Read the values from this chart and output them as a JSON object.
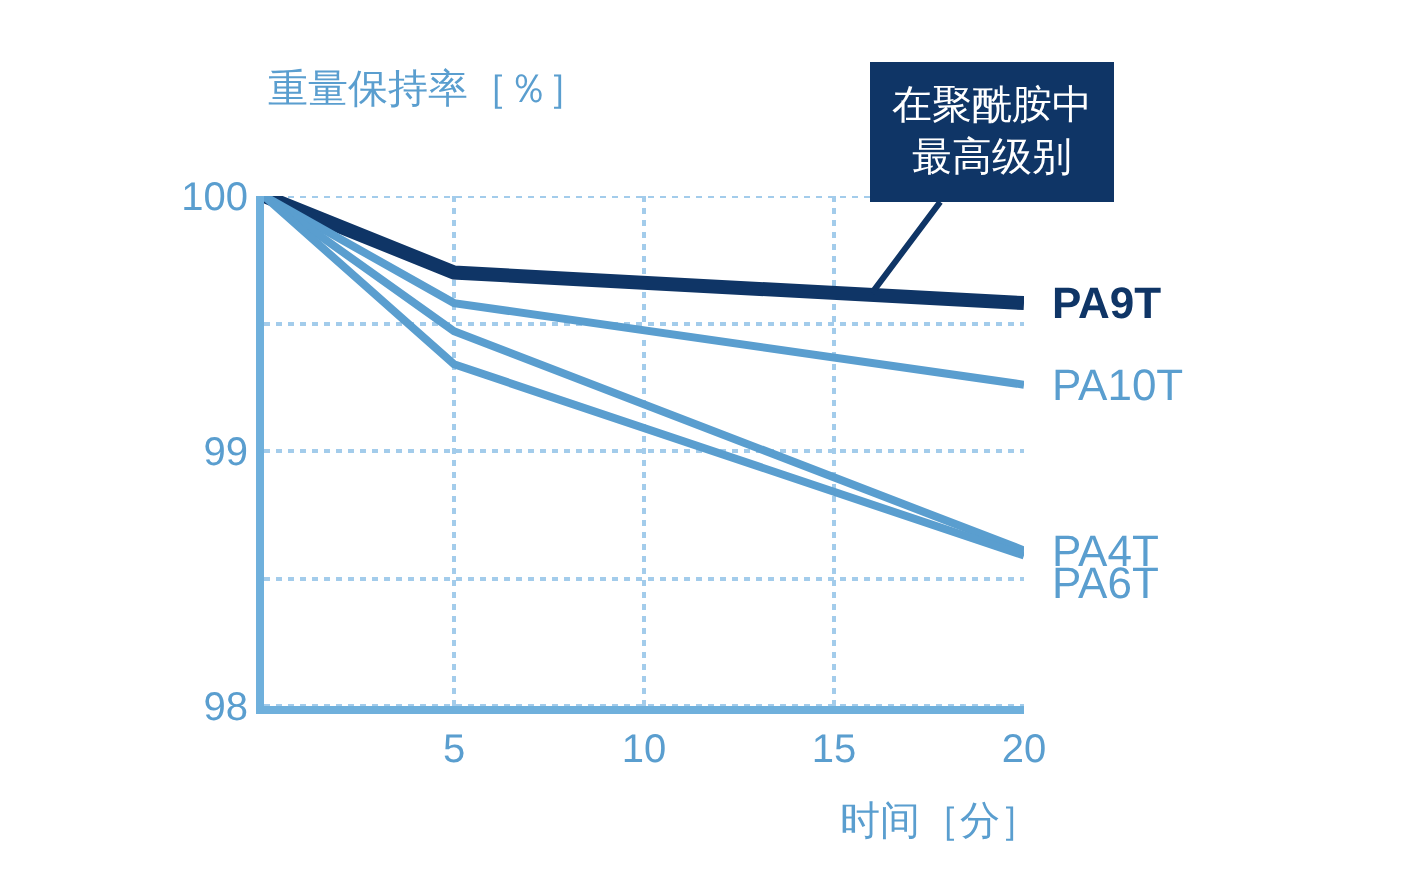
{
  "chart_data": {
    "type": "line",
    "ylabel": "重量保持率［％］",
    "xlabel": "时间［分］",
    "x": [
      0,
      5,
      20
    ],
    "series": [
      {
        "name": "PA9T",
        "color": "#0f3566",
        "values": [
          100,
          99.7,
          99.58
        ]
      },
      {
        "name": "PA10T",
        "color": "#5a9ecf",
        "values": [
          100,
          99.58,
          99.26
        ]
      },
      {
        "name": "PA4T",
        "color": "#5a9ecf",
        "values": [
          100,
          99.47,
          98.61
        ]
      },
      {
        "name": "PA6T",
        "color": "#5a9ecf",
        "values": [
          100,
          99.34,
          98.59
        ]
      }
    ],
    "xlim": [
      0,
      20
    ],
    "xticks": [
      5,
      10,
      15,
      20
    ],
    "ylim": [
      98,
      100
    ],
    "yticks": [
      98,
      {
        "value": 98.5,
        "label": null
      },
      99,
      {
        "value": 99.5,
        "label": null
      },
      100
    ],
    "annotations": [
      {
        "text": "在聚酰胺中最高级别",
        "x": 16,
        "y": 99.62
      }
    ],
    "grid": true,
    "legend": false,
    "marker": "none",
    "line_style": "solid"
  }
}
